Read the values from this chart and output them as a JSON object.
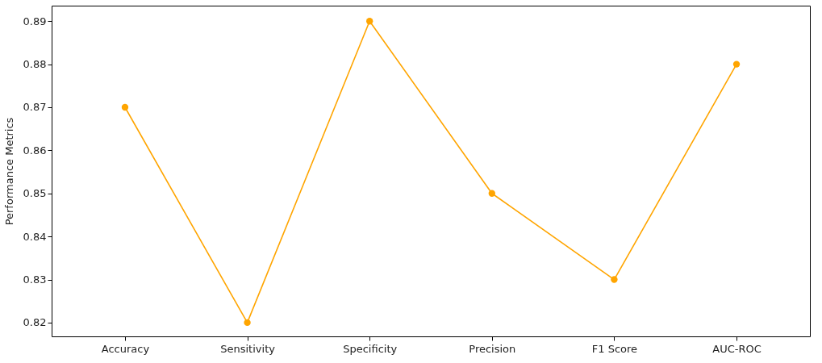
{
  "chart_data": {
    "type": "line",
    "ylabel": "Performance Metrics",
    "categories": [
      "Accuracy",
      "Sensitivity",
      "Specificity",
      "Precision",
      "F1 Score",
      "AUC-ROC"
    ],
    "series": [
      {
        "color": "#ffa500",
        "values": [
          0.87,
          0.82,
          0.89,
          0.85,
          0.83,
          0.88
        ]
      }
    ],
    "ylim": [
      0.8168,
      0.8936
    ],
    "yticks": [
      0.82,
      0.83,
      0.84,
      0.85,
      0.86,
      0.87,
      0.88,
      0.89
    ],
    "grid": false,
    "marker": "circle",
    "line_style": "solid"
  }
}
